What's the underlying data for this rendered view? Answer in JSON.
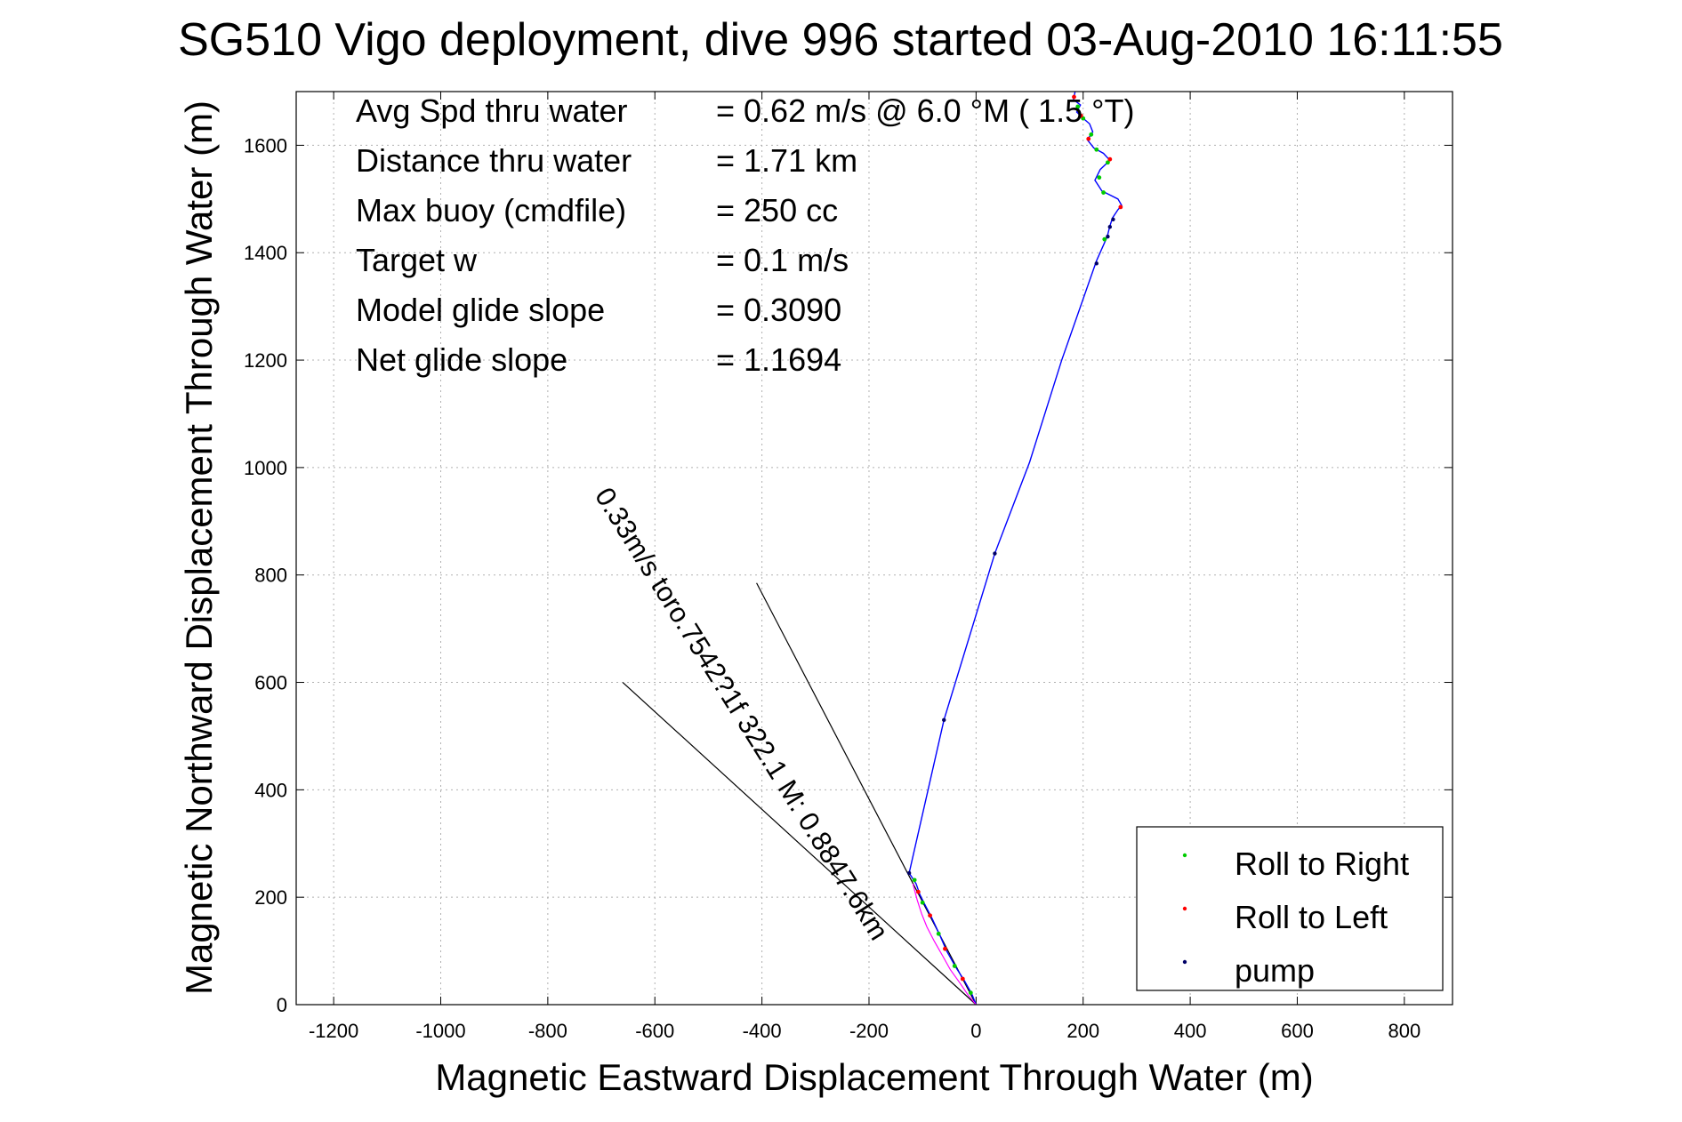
{
  "chart_data": {
    "type": "line",
    "title": "SG510 Vigo deployment, dive 996 started 03-Aug-2010 16:11:55",
    "xlabel": "Magnetic Eastward Displacement Through Water (m)",
    "ylabel": "Magnetic Northward Displacement Through Water (m)",
    "xlim": [
      -1270,
      890
    ],
    "ylim": [
      0,
      1700
    ],
    "xticks": [
      -1200,
      -1000,
      -800,
      -600,
      -400,
      -200,
      0,
      200,
      400,
      600,
      800
    ],
    "yticks": [
      0,
      200,
      400,
      600,
      800,
      1000,
      1200,
      1400,
      1600
    ],
    "grid": true,
    "legend_position": "bottom-right",
    "legend": [
      "Roll to Right",
      "Roll to Left",
      "pump"
    ],
    "colors": {
      "track": "#0000ff",
      "roll_right": "#00cc00",
      "roll_left": "#ff0000",
      "pump": "#000066",
      "current": "#ff00ff",
      "lines": "#000000"
    },
    "stats": [
      {
        "label": "Avg Spd thru water",
        "value": "=  0.62 m/s @   6.0 °M (  1.5 °T)"
      },
      {
        "label": "Distance thru water",
        "value": "=  1.71 km"
      },
      {
        "label": "Max buoy (cmdfile)",
        "value": "= 250 cc"
      },
      {
        "label": "Target w",
        "value": "= 0.1 m/s"
      },
      {
        "label": "Model glide slope",
        "value": "= 0.3090"
      },
      {
        "label": "Net glide slope",
        "value": "= 1.1694"
      }
    ],
    "current_annotation": "0.33m/s toro.7542?1f 322.1 M: 0.8847.6km",
    "ref_lines": [
      {
        "x1": 0,
        "y1": 0,
        "x2": -660,
        "y2": 600
      },
      {
        "x1": 0,
        "y1": 0,
        "x2": -410,
        "y2": 785
      }
    ],
    "track": [
      [
        0,
        0
      ],
      [
        -8,
        20
      ],
      [
        -22,
        45
      ],
      [
        -38,
        70
      ],
      [
        -55,
        100
      ],
      [
        -68,
        130
      ],
      [
        -82,
        160
      ],
      [
        -95,
        185
      ],
      [
        -105,
        205
      ],
      [
        -112,
        225
      ],
      [
        -125,
        245
      ],
      [
        -60,
        530
      ],
      [
        35,
        840
      ],
      [
        100,
        1010
      ],
      [
        160,
        1200
      ],
      [
        225,
        1385
      ],
      [
        245,
        1430
      ],
      [
        250,
        1450
      ],
      [
        255,
        1465
      ],
      [
        265,
        1480
      ],
      [
        272,
        1488
      ],
      [
        265,
        1500
      ],
      [
        235,
        1515
      ],
      [
        222,
        1535
      ],
      [
        232,
        1555
      ],
      [
        250,
        1572
      ],
      [
        238,
        1585
      ],
      [
        220,
        1595
      ],
      [
        208,
        1610
      ],
      [
        218,
        1625
      ],
      [
        212,
        1640
      ],
      [
        198,
        1652
      ],
      [
        188,
        1662
      ],
      [
        195,
        1675
      ],
      [
        182,
        1685
      ],
      [
        185,
        1700
      ]
    ],
    "current_track": [
      [
        0,
        0
      ],
      [
        -15,
        18
      ],
      [
        -30,
        40
      ],
      [
        -48,
        65
      ],
      [
        -62,
        90
      ],
      [
        -78,
        118
      ],
      [
        -92,
        145
      ],
      [
        -102,
        170
      ],
      [
        -110,
        195
      ],
      [
        -118,
        225
      ]
    ],
    "roll_right": [
      [
        -10,
        22
      ],
      [
        -40,
        72
      ],
      [
        -70,
        132
      ],
      [
        -100,
        190
      ],
      [
        -115,
        232
      ],
      [
        240,
        1425
      ],
      [
        238,
        1512
      ],
      [
        230,
        1540
      ],
      [
        246,
        1568
      ],
      [
        225,
        1592
      ],
      [
        215,
        1620
      ],
      [
        200,
        1650
      ],
      [
        190,
        1672
      ]
    ],
    "roll_left": [
      [
        -25,
        48
      ],
      [
        -58,
        104
      ],
      [
        -86,
        166
      ],
      [
        -108,
        210
      ],
      [
        270,
        1485
      ],
      [
        250,
        1574
      ],
      [
        210,
        1612
      ],
      [
        196,
        1655
      ],
      [
        183,
        1690
      ]
    ],
    "pump": [
      [
        -125,
        245
      ],
      [
        -60,
        530
      ],
      [
        35,
        840
      ],
      [
        225,
        1380
      ],
      [
        246,
        1430
      ],
      [
        250,
        1448
      ],
      [
        256,
        1462
      ]
    ]
  }
}
